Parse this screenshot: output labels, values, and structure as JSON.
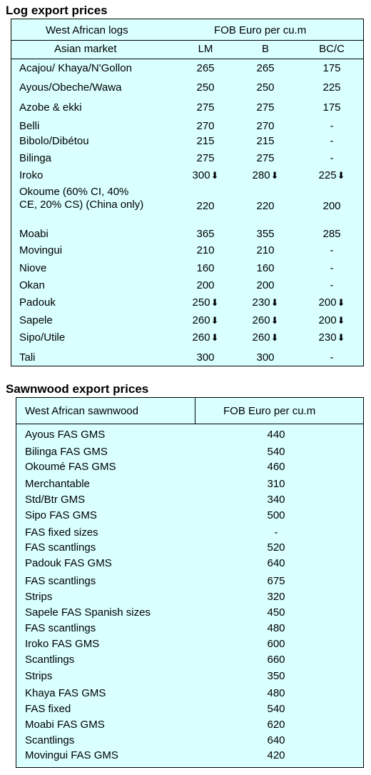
{
  "log": {
    "title": "Log export prices",
    "header1_left": "West African logs",
    "header1_right": "FOB Euro per cu.m",
    "header2_left": "Asian market",
    "cols": [
      "LM",
      "B",
      "BC/C"
    ],
    "arrow_glyph": "⬇",
    "rows": [
      {
        "name": "Acajou/ Khaya/N'Gollon",
        "v": [
          "265",
          "265",
          "175"
        ],
        "d": [
          false,
          false,
          false
        ]
      },
      {
        "name": "Ayous/Obeche/Wawa",
        "v": [
          "250",
          "250",
          "225"
        ],
        "d": [
          false,
          false,
          false
        ]
      },
      {
        "name": "Azobe & ekki",
        "v": [
          "275",
          "275",
          "175"
        ],
        "d": [
          false,
          false,
          false
        ]
      },
      {
        "name": "Belli",
        "v": [
          "270",
          "270",
          "-"
        ],
        "d": [
          false,
          false,
          false
        ]
      },
      {
        "name": "Bibolo/Dibétou",
        "v": [
          "215",
          "215",
          "-"
        ],
        "d": [
          false,
          false,
          false
        ]
      },
      {
        "name": "Bilinga",
        "v": [
          "275",
          "275",
          "-"
        ],
        "d": [
          false,
          false,
          false
        ]
      },
      {
        "name": "Iroko",
        "v": [
          "300",
          "280",
          "225"
        ],
        "d": [
          true,
          true,
          true
        ]
      },
      {
        "name": "Okoume (60% CI, 40% CE, 20% CS) (China only)",
        "v": [
          "220",
          "220",
          "200"
        ],
        "d": [
          false,
          false,
          false
        ]
      },
      {
        "name": "Moabi",
        "v": [
          "365",
          "355",
          "285"
        ],
        "d": [
          false,
          false,
          false
        ]
      },
      {
        "name": "Movingui",
        "v": [
          "210",
          "210",
          "-"
        ],
        "d": [
          false,
          false,
          false
        ]
      },
      {
        "name": "Niove",
        "v": [
          "160",
          "160",
          "-"
        ],
        "d": [
          false,
          false,
          false
        ]
      },
      {
        "name": "Okan",
        "v": [
          "200",
          "200",
          "-"
        ],
        "d": [
          false,
          false,
          false
        ]
      },
      {
        "name": "Padouk",
        "v": [
          "250",
          "230",
          "200"
        ],
        "d": [
          true,
          true,
          true
        ]
      },
      {
        "name": "Sapele",
        "v": [
          "260",
          "260",
          "200"
        ],
        "d": [
          true,
          true,
          true
        ]
      },
      {
        "name": "Sipo/Utile",
        "v": [
          "260",
          "260",
          "230"
        ],
        "d": [
          true,
          true,
          true
        ]
      },
      {
        "name": "Tali",
        "v": [
          "300",
          "300",
          "-"
        ],
        "d": [
          false,
          false,
          false
        ]
      }
    ]
  },
  "sawn": {
    "title": "Sawnwood export prices",
    "header_left": "West African sawnwood",
    "header_right": "FOB Euro per cu.m",
    "rows": [
      {
        "name": "Ayous FAS GMS",
        "v": "440"
      },
      {
        "name": "Bilinga FAS GMS",
        "v": "540"
      },
      {
        "name": "Okoumé FAS GMS",
        "v": "460"
      },
      {
        "name": "Merchantable",
        "v": "310"
      },
      {
        "name": "Std/Btr GMS",
        "v": "340"
      },
      {
        "name": "Sipo FAS GMS",
        "v": "500"
      },
      {
        "name": "FAS fixed sizes",
        "v": "-"
      },
      {
        "name": "FAS scantlings",
        "v": "520"
      },
      {
        "name": "Padouk FAS GMS",
        "v": "640"
      },
      {
        "name": "FAS scantlings",
        "v": "675"
      },
      {
        "name": "Strips",
        "v": "320"
      },
      {
        "name": "Sapele FAS Spanish sizes",
        "v": "450"
      },
      {
        "name": "FAS scantlings",
        "v": "480"
      },
      {
        "name": "Iroko FAS GMS",
        "v": "600"
      },
      {
        "name": "Scantlings",
        "v": "660"
      },
      {
        "name": "Strips",
        "v": "350"
      },
      {
        "name": "Khaya FAS GMS",
        "v": "480"
      },
      {
        "name": "FAS fixed",
        "v": "540"
      },
      {
        "name": "Moabi FAS GMS",
        "v": "620"
      },
      {
        "name": "Scantlings",
        "v": "640"
      },
      {
        "name": "Movingui FAS GMS",
        "v": "420"
      }
    ]
  }
}
